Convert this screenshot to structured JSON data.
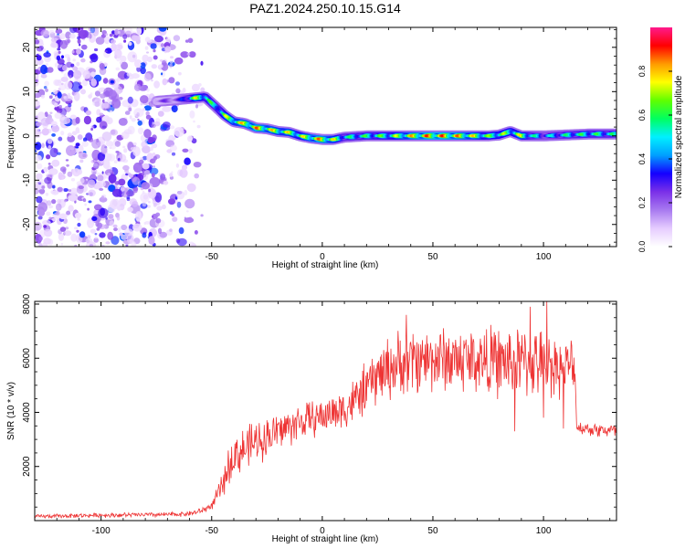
{
  "title": "PAZ1.2024.250.10.15.G14",
  "chart_data": [
    {
      "type": "heatmap",
      "name": "spectrogram",
      "xlabel": "Height of straight line (km)",
      "ylabel": "Frequency (Hz)",
      "xlim": [
        -130,
        133
      ],
      "ylim": [
        -25,
        24.5
      ],
      "xticks": [
        -100,
        -50,
        0,
        50,
        100
      ],
      "yticks": [
        20,
        10,
        0,
        -10,
        -20
      ],
      "colorbar": {
        "label": "Normalized spectral amplitude",
        "range": [
          0,
          1
        ],
        "ticks": [
          "0.0",
          "0.2",
          "0.4",
          "0.6",
          "0.8"
        ],
        "colormap": [
          "#ffffff",
          "#e6ccff",
          "#a87af0",
          "#7a30e8",
          "#1400ff",
          "#00a0ff",
          "#00f0ff",
          "#00ff60",
          "#60ff00",
          "#ffff00",
          "#ff9a00",
          "#ff0000",
          "#ff1a8c"
        ]
      },
      "ridge": {
        "description_x": [
          -75,
          -65,
          -57,
          -53,
          -48,
          -44,
          -40,
          -35,
          -30,
          -25,
          -20,
          -15,
          -10,
          -5,
          0,
          5,
          10,
          20,
          30,
          40,
          50,
          60,
          70,
          75,
          80,
          85,
          90,
          95,
          100,
          110,
          120,
          133
        ],
        "frequency_hz": [
          7.8,
          8.2,
          8.6,
          8.8,
          6.5,
          4.6,
          3.2,
          2.8,
          1.8,
          1.6,
          1.0,
          0.8,
          0.0,
          -0.5,
          -0.8,
          -0.8,
          -0.3,
          0.0,
          0.0,
          0.0,
          0.0,
          0.0,
          0.0,
          0.0,
          0.2,
          1.0,
          0.0,
          0.0,
          0.0,
          0.2,
          0.4,
          0.4
        ],
        "amplitude": [
          0.25,
          0.3,
          0.8,
          0.7,
          0.6,
          0.75,
          0.8,
          0.85,
          0.9,
          0.85,
          0.8,
          0.8,
          0.75,
          0.85,
          0.9,
          0.8,
          0.6,
          0.65,
          0.7,
          0.85,
          0.95,
          0.9,
          0.8,
          0.7,
          0.75,
          0.7,
          0.8,
          0.6,
          0.5,
          0.6,
          0.65,
          0.6
        ]
      },
      "noise_region_x": [
        -130,
        -52
      ]
    },
    {
      "type": "line",
      "name": "snr",
      "xlabel": "Height of straight line (km)",
      "ylabel": "SNR (10 * v/v)",
      "xlim": [
        -130,
        133
      ],
      "ylim": [
        0,
        8100
      ],
      "xticks": [
        -100,
        -50,
        0,
        50,
        100
      ],
      "yticks": [
        2000,
        4000,
        6000,
        8000
      ],
      "color": "#ee3333",
      "trend": {
        "x": [
          -130,
          -100,
          -70,
          -60,
          -55,
          -50,
          -45,
          -42,
          -40,
          -30,
          -20,
          -10,
          0,
          10,
          15,
          20,
          25,
          30,
          40,
          50,
          60,
          70,
          80,
          90,
          100,
          110,
          114,
          115,
          120,
          125,
          133
        ],
        "y": [
          150,
          200,
          220,
          260,
          350,
          550,
          1300,
          2100,
          2400,
          2900,
          3300,
          3650,
          3850,
          4150,
          4450,
          4900,
          5350,
          5650,
          5900,
          6000,
          5950,
          5950,
          5850,
          5850,
          5800,
          5750,
          5600,
          3450,
          3400,
          3350,
          3300
        ]
      },
      "noise_amplitude": {
        "x": [
          -130,
          -60,
          -50,
          -45,
          -40,
          0,
          20,
          30,
          90,
          114,
          115,
          133
        ],
        "y": [
          60,
          80,
          120,
          400,
          700,
          550,
          800,
          1000,
          1100,
          900,
          200,
          250
        ]
      },
      "spikes": [
        {
          "x": 101.5,
          "y": 8100
        },
        {
          "x": 94,
          "y": 7900
        },
        {
          "x": 38,
          "y": 7600
        },
        {
          "x": 87,
          "y": 3300
        },
        {
          "x": 100,
          "y": 3800
        },
        {
          "x": 109,
          "y": 3400
        }
      ]
    }
  ]
}
